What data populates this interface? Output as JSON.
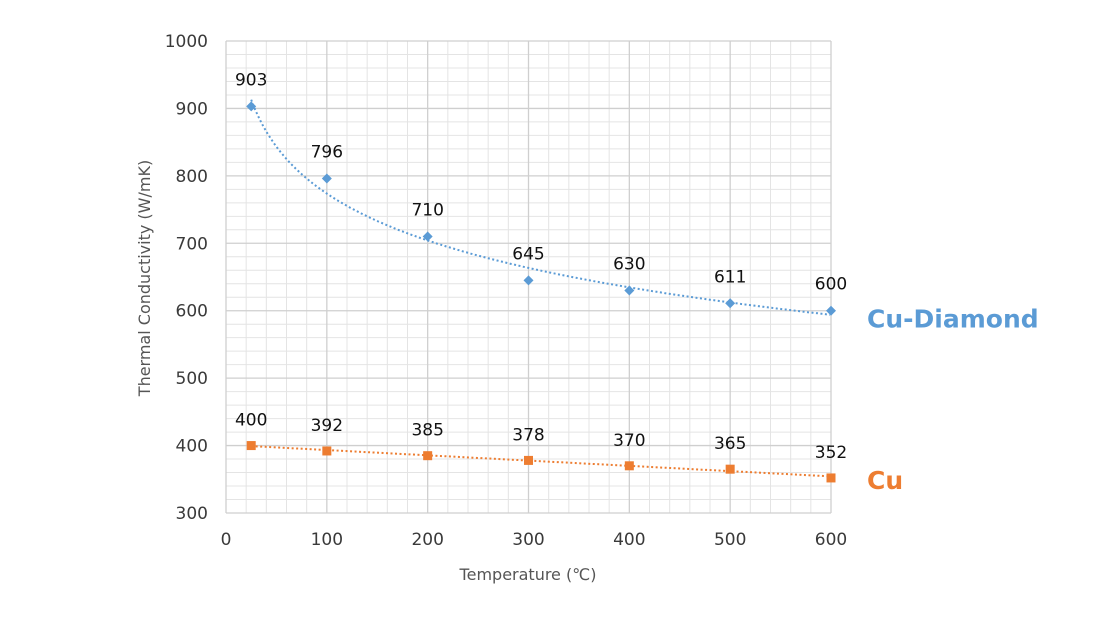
{
  "chart_data": {
    "type": "scatter",
    "title": "",
    "xlabel": "Temperature (℃)",
    "ylabel": "Thermal Conductivity (W/mK)",
    "xlim": [
      0,
      600
    ],
    "ylim": [
      300,
      1000
    ],
    "xticks": [
      0,
      100,
      200,
      300,
      400,
      500,
      600
    ],
    "yticks": [
      300,
      400,
      500,
      600,
      700,
      800,
      900,
      1000
    ],
    "grid": true,
    "series": [
      {
        "name": "Cu-Diamond",
        "color": "#5b9bd5",
        "marker": "diamond",
        "trendline": "logarithmic",
        "x": [
          25,
          100,
          200,
          300,
          400,
          500,
          600
        ],
        "values": [
          903,
          796,
          710,
          645,
          630,
          611,
          600
        ]
      },
      {
        "name": "Cu",
        "color": "#ed7d31",
        "marker": "square",
        "trendline": "linear",
        "x": [
          25,
          100,
          200,
          300,
          400,
          500,
          600
        ],
        "values": [
          400,
          392,
          385,
          378,
          370,
          365,
          352
        ]
      }
    ]
  }
}
